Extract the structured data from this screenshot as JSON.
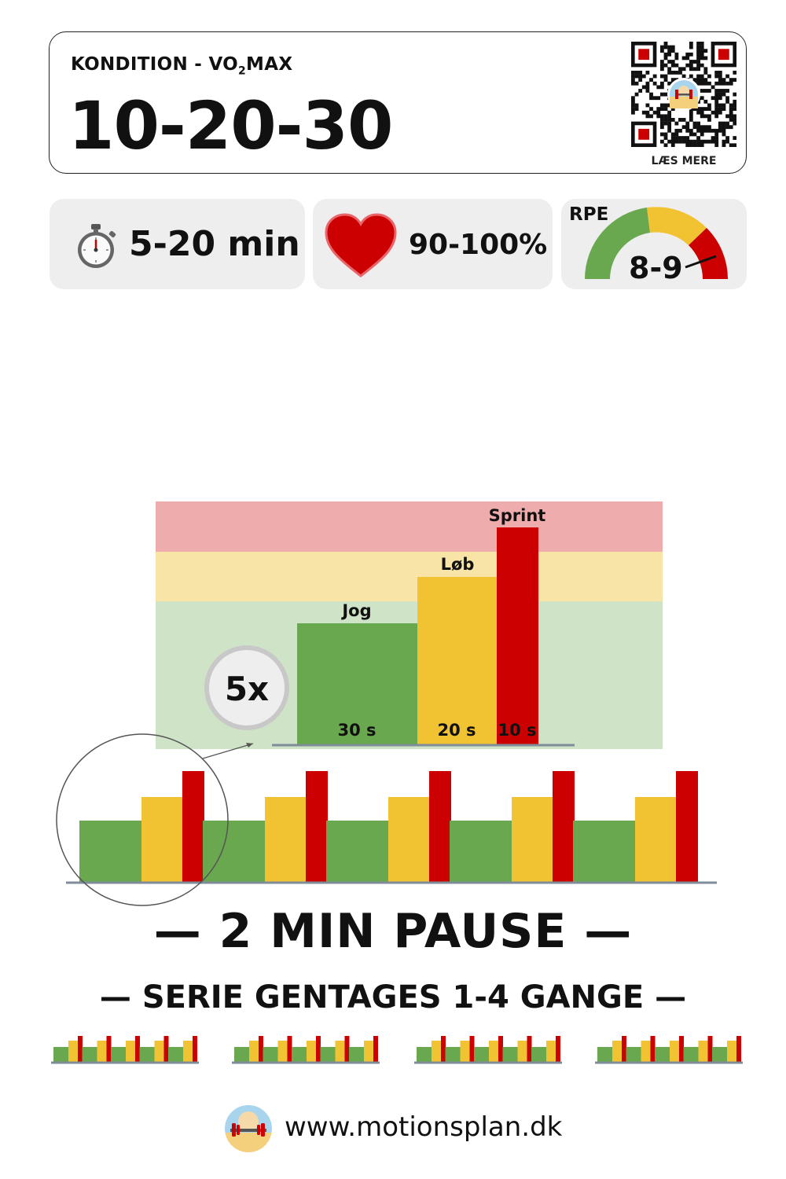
{
  "header": {
    "subtitle_pre": "KONDITION - VO",
    "subtitle_sub": "2",
    "subtitle_post": "MAX",
    "title": "10-20-30",
    "qr_caption": "LÆS MERE"
  },
  "stats": {
    "time_icon": "stopwatch-icon",
    "time_value": "5-20 min",
    "heart_icon": "heart-icon",
    "heart_value": "90-100%",
    "rpe_label": "RPE",
    "rpe_value": "8-9"
  },
  "interval": {
    "repeat_label": "5x",
    "colors": {
      "jog": "#6aa84f",
      "lob": "#f1c232",
      "sprint": "#cc0000"
    },
    "zone_colors": {
      "high": "#efacac",
      "mid": "#f9e4a7",
      "low": "#cfe3c6"
    },
    "segments": [
      {
        "name": "Jog",
        "duration": "30 s"
      },
      {
        "name": "Løb",
        "duration": "20 s"
      },
      {
        "name": "Sprint",
        "duration": "10 s"
      }
    ]
  },
  "footer": {
    "pause": "— 2 MIN PAUSE —",
    "serie": "— SERIE GENTAGES 1-4 GANGE —",
    "website": "www.motionsplan.dk"
  }
}
